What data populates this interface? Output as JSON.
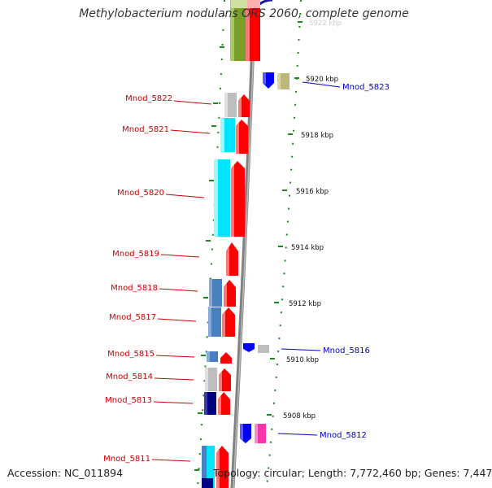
{
  "title": "Methylobacterium nodulans ORS 2060, complete genome",
  "accession_text": "Accession: NC_011894",
  "topology_text": "Topology: circular; Length: 7,772,460 bp; Genes: 7,447",
  "top_tick_label": "5922 kbp",
  "tick_labels": [
    "5920 kbp",
    "5918 kbp",
    "5916 kbp",
    "5914 kbp",
    "5912 kbp",
    "5910 kbp",
    "5908 kbp"
  ],
  "left_gene_labels": [
    "Mnod_5822",
    "Mnod_5821",
    "Mnod_5820",
    "Mnod_5819",
    "Mnod_5818",
    "Mnod_5817",
    "Mnod_5815",
    "Mnod_5814",
    "Mnod_5813",
    "Mnod_5811"
  ],
  "right_gene_labels": [
    "Mnod_5823",
    "Mnod_5816",
    "Mnod_5812"
  ],
  "colors": {
    "forward_cds": "#ff0000",
    "reverse_cds": "#0000ff",
    "label_left": "#cc0000",
    "label_right": "#0000cc",
    "cyan": "#00e5ff",
    "steel_blue": "#4a7fbf",
    "navy": "#000080",
    "gray": "#bdbdbd",
    "olive": "#7a9e2a",
    "khaki": "#bcb77a",
    "magenta": "#ff33aa",
    "backbone": "#808080",
    "tick_green": "#1a8a1a"
  }
}
